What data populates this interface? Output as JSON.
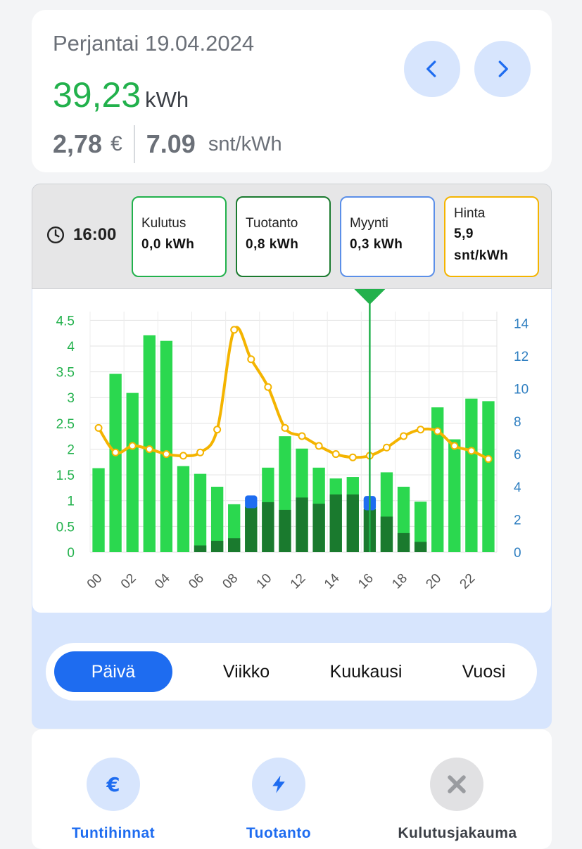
{
  "header": {
    "date": "Perjantai 19.04.2024",
    "energy_value": "39,23",
    "energy_unit": "kWh",
    "cost_value": "2,78",
    "cost_unit": "€",
    "price_value": "7.09",
    "price_unit": "snt/kWh",
    "prev_icon": "chevron-left-icon",
    "next_icon": "chevron-right-icon"
  },
  "selection": {
    "time": "16:00",
    "boxes": [
      {
        "label": "Kulutus",
        "value": "0,0 kWh",
        "border": "#22b14c"
      },
      {
        "label": "Tuotanto",
        "value": "0,8 kWh",
        "border": "#1a7a2e"
      },
      {
        "label": "Myynti",
        "value": "0,3 kWh",
        "border": "#5b8fe8"
      },
      {
        "label": "Hinta",
        "value": "5,9 snt/kWh",
        "border": "#f4b400"
      }
    ]
  },
  "chart_data": {
    "type": "bar",
    "categories": [
      "00",
      "01",
      "02",
      "03",
      "04",
      "05",
      "06",
      "07",
      "08",
      "09",
      "10",
      "11",
      "12",
      "13",
      "14",
      "15",
      "16",
      "17",
      "18",
      "19",
      "20",
      "21",
      "22",
      "23"
    ],
    "x_tick_labels": [
      "00",
      "02",
      "04",
      "06",
      "08",
      "10",
      "12",
      "14",
      "16",
      "18",
      "20",
      "22"
    ],
    "y_left_ticks": [
      "0",
      "0.5",
      "1",
      "1.5",
      "2",
      "2.5",
      "3",
      "3.5",
      "4",
      "4.5"
    ],
    "y_right_ticks": [
      "0",
      "2",
      "4",
      "6",
      "8",
      "10",
      "12",
      "14"
    ],
    "ylim_left": [
      0,
      4.6
    ],
    "ylim_right": [
      0,
      14.5
    ],
    "selected_hour": 16,
    "series": [
      {
        "values": [
          1.63,
          3.46,
          3.09,
          4.21,
          4.1,
          1.67,
          1.52,
          1.27,
          0.93,
          0.9,
          1.64,
          2.25,
          2.01,
          1.64,
          1.43,
          1.46,
          0.0,
          1.55,
          1.27,
          0.98,
          2.81,
          2.19,
          2.98,
          2.93
        ],
        "color": "#2bd84f"
      },
      {
        "values": [
          0,
          0,
          0,
          0,
          0,
          0,
          0.13,
          0.22,
          0.27,
          0.88,
          0.97,
          0.82,
          1.06,
          0.94,
          1.12,
          1.12,
          0.84,
          0.69,
          0.37,
          0.2,
          0,
          0,
          0,
          0
        ],
        "color": "#1a7a2e"
      },
      {
        "values": [
          0,
          0,
          0,
          0,
          0,
          0,
          0,
          0,
          0,
          0.22,
          0,
          0,
          0,
          0,
          0,
          0,
          0.25,
          0,
          0,
          0,
          0,
          0,
          0,
          0
        ],
        "color": "#1e6cf0"
      },
      {
        "values": [
          7.6,
          6.1,
          6.5,
          6.3,
          6.0,
          5.9,
          6.1,
          7.5,
          13.6,
          11.8,
          10.1,
          7.6,
          7.1,
          6.5,
          6.0,
          5.8,
          5.9,
          6.4,
          7.1,
          7.5,
          7.4,
          6.5,
          6.2,
          5.7
        ],
        "color": "#f4b400"
      }
    ]
  },
  "periods": {
    "active": "Päivä",
    "options": [
      "Viikko",
      "Kuukausi",
      "Vuosi"
    ]
  },
  "shortcuts": [
    {
      "label": "Tuntihinnat",
      "icon": "euro-icon",
      "color": "#1e6cf0"
    },
    {
      "label": "Tuotanto",
      "icon": "lightning-icon",
      "color": "#1e6cf0"
    },
    {
      "label": "Kulutusjakauma",
      "icon": "disabled-cross-icon",
      "color": "#3b3f46"
    }
  ]
}
